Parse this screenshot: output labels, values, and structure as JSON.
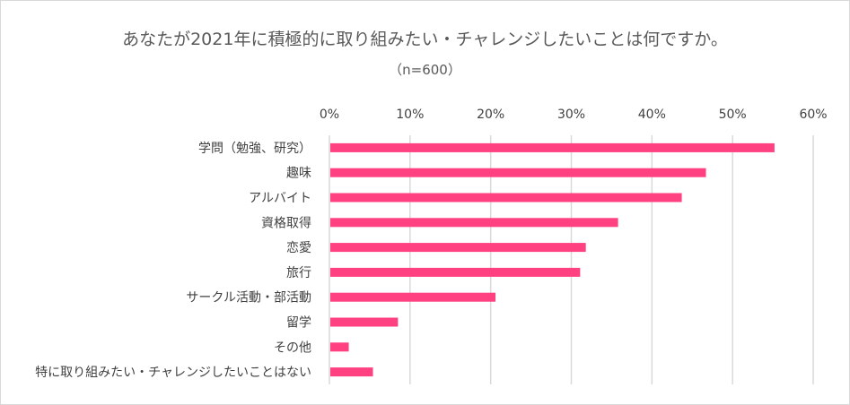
{
  "chart_data": {
    "type": "bar",
    "orientation": "horizontal",
    "title": "あなたが2021年に積極的に取り組みたい・チャレンジしたいことは何ですか。",
    "subtitle": "（n=600）",
    "categories": [
      "学問（勉強、研究）",
      "趣味",
      "アルバイト",
      "資格取得",
      "恋愛",
      "旅行",
      "サークル活動・部活動",
      "留学",
      "その他",
      "特に取り組みたい・チャレンジしたいことはない"
    ],
    "values": [
      55.2,
      46.7,
      43.7,
      35.8,
      31.8,
      31.1,
      20.6,
      8.5,
      2.4,
      5.4
    ],
    "xlim": [
      0,
      60
    ],
    "xticks": [
      "0%",
      "10%",
      "20%",
      "30%",
      "40%",
      "50%",
      "60%"
    ],
    "grid": true,
    "bar_color": "#FF4081",
    "grid_color": "#D9D9D9"
  }
}
